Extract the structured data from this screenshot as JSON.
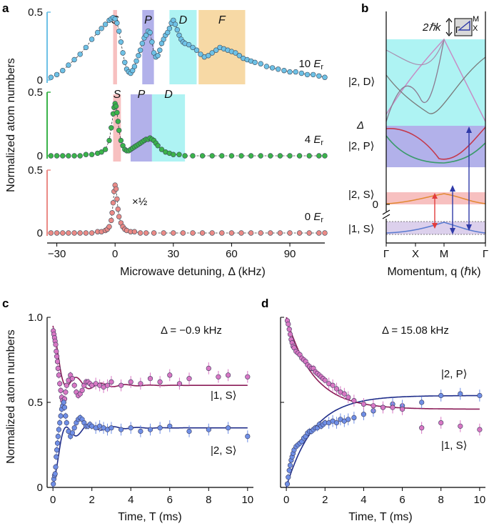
{
  "panels": {
    "a": "a",
    "b": "b",
    "c": "c",
    "d": "d"
  },
  "colors": {
    "blue": "#6ec1e6",
    "green": "#3bb34a",
    "red": "#ea8a86",
    "magenta": "#d877c4",
    "cyan_band": "#aef3f3",
    "violet_band": "#b2b1ea",
    "orange_band": "#f7d9a5",
    "pink_band": "#f7c0c0",
    "curve_magenta": "#8b1c58",
    "curve_blue": "#1f2d8a",
    "arrow_blue": "#2f3aa8",
    "arrow_red": "#e23c3c"
  },
  "chart_data": [
    {
      "id": "a",
      "type": "scatter",
      "xlabel": "Microwave detuning, Δ (kHz)",
      "ylabel": "Normalized atom numbers",
      "xlim": [
        -35,
        108
      ],
      "xticks": [
        "−30",
        "0",
        "30",
        "60",
        "90"
      ],
      "xtick_values": [
        -30,
        0,
        30,
        60,
        90
      ],
      "annotation": "×½",
      "series": [
        {
          "name": "10 E_r",
          "label": "10",
          "label_unit": "E",
          "label_sub": "r",
          "color": "#6ec1e6",
          "yticks": [
            "0",
            "0.5"
          ],
          "ylim": [
            0,
            0.5
          ],
          "bands": [
            {
              "label": "S",
              "from": -1,
              "to": 1,
              "color": "#f7c0c0"
            },
            {
              "label": "P",
              "from": 14,
              "to": 20,
              "color": "#b2b1ea"
            },
            {
              "label": "D",
              "from": 28,
              "to": 42,
              "color": "#aef3f3"
            },
            {
              "label": "F",
              "from": 43,
              "to": 67,
              "color": "#f7d9a5"
            }
          ],
          "x": [
            -33,
            -30,
            -27,
            -24,
            -21,
            -18,
            -15,
            -12,
            -9,
            -7,
            -5,
            -3,
            -2,
            -1,
            0,
            1,
            2,
            3,
            4,
            5,
            6,
            7,
            8,
            9,
            10,
            11,
            12,
            13,
            14,
            15,
            16,
            17,
            18,
            19,
            20,
            21,
            22,
            23,
            24,
            25,
            26,
            27,
            28,
            29,
            30,
            31,
            32,
            33,
            34,
            35,
            36,
            38,
            40,
            42,
            44,
            46,
            48,
            50,
            52,
            54,
            56,
            58,
            60,
            62,
            64,
            66,
            68,
            70,
            72,
            75,
            78,
            81,
            84,
            87,
            90,
            93,
            96,
            99,
            102,
            105,
            108
          ],
          "y": [
            0.02,
            0.04,
            0.07,
            0.11,
            0.15,
            0.19,
            0.24,
            0.3,
            0.35,
            0.38,
            0.41,
            0.44,
            0.45,
            0.46,
            0.45,
            0.42,
            0.36,
            0.28,
            0.2,
            0.13,
            0.08,
            0.06,
            0.05,
            0.07,
            0.1,
            0.14,
            0.18,
            0.22,
            0.27,
            0.31,
            0.33,
            0.36,
            0.35,
            0.28,
            0.2,
            0.17,
            0.18,
            0.22,
            0.27,
            0.3,
            0.33,
            0.35,
            0.38,
            0.42,
            0.44,
            0.41,
            0.37,
            0.33,
            0.3,
            0.28,
            0.27,
            0.26,
            0.24,
            0.22,
            0.19,
            0.17,
            0.18,
            0.2,
            0.22,
            0.24,
            0.23,
            0.22,
            0.21,
            0.2,
            0.18,
            0.16,
            0.15,
            0.14,
            0.13,
            0.12,
            0.1,
            0.09,
            0.08,
            0.07,
            0.06,
            0.06,
            0.05,
            0.04,
            0.04,
            0.03,
            0.02
          ]
        },
        {
          "name": "4 E_r",
          "label": "4",
          "label_unit": "E",
          "label_sub": "r",
          "color": "#3bb34a",
          "yticks": [
            "0",
            "0.5"
          ],
          "ylim": [
            0,
            0.5
          ],
          "bands": [
            {
              "label": "S",
              "from": -1,
              "to": 3,
              "color": "#f7c0c0"
            },
            {
              "label": "P",
              "from": 8,
              "to": 19,
              "color": "#b2b1ea"
            },
            {
              "label": "D",
              "from": 19,
              "to": 36,
              "color": "#aef3f3"
            }
          ],
          "x": [
            -33,
            -30,
            -27,
            -24,
            -21,
            -18,
            -15,
            -12,
            -9,
            -7,
            -5,
            -3,
            -2,
            -1,
            -0.5,
            0,
            0.5,
            1,
            1.5,
            2,
            3,
            4,
            5,
            6,
            7,
            8,
            9,
            10,
            11,
            12,
            13,
            14,
            15,
            16,
            17,
            18,
            19,
            20,
            21,
            22,
            24,
            26,
            28,
            30,
            33,
            36,
            40,
            45,
            50,
            55,
            60,
            65,
            70,
            75,
            80,
            85,
            90,
            95,
            100,
            105,
            108
          ],
          "y": [
            0,
            0,
            0,
            0,
            0,
            0,
            0.01,
            0.01,
            0.02,
            0.03,
            0.05,
            0.12,
            0.22,
            0.33,
            0.38,
            0.41,
            0.39,
            0.34,
            0.27,
            0.2,
            0.12,
            0.08,
            0.05,
            0.04,
            0.04,
            0.05,
            0.06,
            0.07,
            0.08,
            0.09,
            0.1,
            0.11,
            0.12,
            0.13,
            0.13,
            0.14,
            0.13,
            0.12,
            0.1,
            0.08,
            0.05,
            0.03,
            0.02,
            0.01,
            0.01,
            0,
            0,
            0,
            0,
            0,
            0,
            0,
            0,
            0,
            0,
            0,
            0,
            0,
            0,
            0,
            0
          ]
        },
        {
          "name": "0 E_r",
          "label": "0",
          "label_unit": "E",
          "label_sub": "r",
          "color": "#ea8a86",
          "yticks": [
            "0",
            "0.5"
          ],
          "ylim": [
            0,
            0.5
          ],
          "bands": [],
          "x": [
            -33,
            -30,
            -27,
            -24,
            -21,
            -18,
            -15,
            -12,
            -9,
            -7,
            -5,
            -4,
            -3,
            -2,
            -1.5,
            -1,
            -0.5,
            0,
            0.5,
            1,
            1.5,
            2,
            3,
            4,
            5,
            6,
            8,
            10,
            13,
            16,
            20,
            25,
            30,
            35,
            40,
            45,
            50,
            55,
            60,
            65,
            70,
            75,
            80,
            85,
            90,
            95,
            100,
            105,
            108
          ],
          "y": [
            0,
            0,
            0,
            0,
            0,
            0,
            0,
            0,
            0.01,
            0.01,
            0.02,
            0.03,
            0.05,
            0.1,
            0.16,
            0.24,
            0.33,
            0.38,
            0.35,
            0.27,
            0.19,
            0.13,
            0.08,
            0.05,
            0.03,
            0.02,
            0.01,
            0.01,
            0,
            0,
            0,
            0,
            0,
            0,
            0,
            0,
            0,
            0,
            0,
            0,
            0,
            0,
            0,
            0,
            0,
            0,
            0,
            0,
            0
          ]
        }
      ]
    },
    {
      "id": "b",
      "type": "line",
      "xlabel": "Momentum, q (ℏk)",
      "ylabel": "Δ",
      "xticks": [
        "Γ",
        "X",
        "M",
        "Γ"
      ],
      "inset_label": "2ℏk",
      "inset_points": [
        "Γ",
        "M",
        "X"
      ],
      "zero_label": "0",
      "band_labels": [
        "|2, D⟩",
        "|2, P⟩",
        "|2, S⟩",
        "|1, S⟩"
      ],
      "bands": [
        {
          "label": "|2, D⟩",
          "color": "#aef3f3"
        },
        {
          "label": "|2, P⟩",
          "color": "#b2b1ea"
        },
        {
          "label": "|2, S⟩",
          "color": "#f7c0c0"
        },
        {
          "label": "|1, S⟩",
          "color": "#dcd0ec"
        }
      ]
    },
    {
      "id": "c",
      "type": "scatter",
      "title": "Δ = −0.9 kHz",
      "xlabel": "Time, T (ms)",
      "ylabel": "Normalized atom numbers",
      "xlim": [
        -0.3,
        10.3
      ],
      "ylim": [
        0,
        1.0
      ],
      "xticks": [
        "0",
        "2",
        "4",
        "6",
        "8",
        "10"
      ],
      "xtick_values": [
        0,
        2,
        4,
        6,
        8,
        10
      ],
      "yticks": [
        "0",
        "0.5",
        "1.0"
      ],
      "ytick_values": [
        0,
        0.5,
        1.0
      ],
      "series": [
        {
          "name": "|1, S⟩",
          "color": "#d877c4",
          "x": [
            0.02,
            0.05,
            0.08,
            0.11,
            0.14,
            0.17,
            0.2,
            0.23,
            0.26,
            0.3,
            0.35,
            0.4,
            0.45,
            0.5,
            0.55,
            0.6,
            0.65,
            0.7,
            0.8,
            0.9,
            1.0,
            1.1,
            1.2,
            1.3,
            1.4,
            1.5,
            1.6,
            1.7,
            1.8,
            1.9,
            2.0,
            2.2,
            2.4,
            2.6,
            2.8,
            3.0,
            3.5,
            4.0,
            4.5,
            5.0,
            5.5,
            6.0,
            6.5,
            7.0,
            8.0,
            8.5,
            9.0,
            10.0
          ],
          "y": [
            0.92,
            0.9,
            0.88,
            0.86,
            0.84,
            0.8,
            0.77,
            0.74,
            0.7,
            0.66,
            0.61,
            0.57,
            0.53,
            0.51,
            0.5,
            0.52,
            0.56,
            0.6,
            0.63,
            0.66,
            0.64,
            0.6,
            0.56,
            0.54,
            0.55,
            0.57,
            0.6,
            0.62,
            0.62,
            0.61,
            0.6,
            0.61,
            0.6,
            0.59,
            0.6,
            0.62,
            0.6,
            0.62,
            0.61,
            0.64,
            0.62,
            0.66,
            0.61,
            0.64,
            0.7,
            0.65,
            0.66,
            0.65
          ]
        },
        {
          "name": "|2, S⟩",
          "color": "#6f8fe6",
          "x": [
            0.02,
            0.05,
            0.08,
            0.11,
            0.14,
            0.17,
            0.2,
            0.23,
            0.26,
            0.3,
            0.35,
            0.4,
            0.45,
            0.5,
            0.55,
            0.6,
            0.65,
            0.7,
            0.8,
            0.9,
            1.0,
            1.1,
            1.2,
            1.3,
            1.4,
            1.5,
            1.6,
            1.7,
            1.8,
            1.9,
            2.0,
            2.2,
            2.4,
            2.6,
            2.8,
            3.0,
            3.5,
            4.0,
            4.5,
            5.0,
            5.5,
            6.0,
            7.0,
            8.0,
            9.0,
            10.0
          ],
          "y": [
            0.02,
            0.05,
            0.07,
            0.08,
            0.12,
            0.18,
            0.22,
            0.26,
            0.3,
            0.34,
            0.38,
            0.42,
            0.46,
            0.48,
            0.5,
            0.47,
            0.42,
            0.38,
            0.33,
            0.3,
            0.32,
            0.35,
            0.38,
            0.4,
            0.41,
            0.4,
            0.38,
            0.36,
            0.36,
            0.37,
            0.36,
            0.35,
            0.36,
            0.35,
            0.34,
            0.35,
            0.34,
            0.35,
            0.33,
            0.34,
            0.35,
            0.36,
            0.33,
            0.34,
            0.35,
            0.3
          ]
        }
      ],
      "fits": [
        {
          "name": "fit |1, S⟩",
          "color": "#8b1c58",
          "kind": "decay_osc",
          "start": 0.95,
          "end": 0.6,
          "sign": 1
        },
        {
          "name": "fit |2, S⟩",
          "color": "#1f2d8a",
          "kind": "decay_osc",
          "start": 0.0,
          "end": 0.35,
          "sign": -1
        }
      ]
    },
    {
      "id": "d",
      "type": "scatter",
      "title": "Δ = 15.08 kHz",
      "xlabel": "Time, T (ms)",
      "xlim": [
        -0.3,
        10.3
      ],
      "ylim": [
        0,
        1.0
      ],
      "xticks": [
        "0",
        "2",
        "4",
        "6",
        "8",
        "10"
      ],
      "xtick_values": [
        0,
        2,
        4,
        6,
        8,
        10
      ],
      "series": [
        {
          "name": "|2, P⟩",
          "color": "#6f8fe6",
          "x": [
            0.05,
            0.1,
            0.15,
            0.2,
            0.25,
            0.3,
            0.35,
            0.4,
            0.5,
            0.6,
            0.7,
            0.8,
            0.9,
            1.0,
            1.1,
            1.2,
            1.3,
            1.4,
            1.5,
            1.6,
            1.7,
            1.8,
            1.9,
            2.0,
            2.2,
            2.4,
            2.6,
            2.8,
            3.0,
            3.2,
            3.5,
            4.0,
            4.5,
            5.0,
            5.5,
            6.0,
            7.0,
            8.0,
            9.0,
            10.0
          ],
          "y": [
            0.02,
            0.06,
            0.1,
            0.13,
            0.16,
            0.18,
            0.2,
            0.22,
            0.24,
            0.25,
            0.26,
            0.27,
            0.29,
            0.3,
            0.32,
            0.33,
            0.33,
            0.34,
            0.35,
            0.35,
            0.37,
            0.36,
            0.37,
            0.38,
            0.38,
            0.39,
            0.38,
            0.4,
            0.39,
            0.4,
            0.41,
            0.43,
            0.45,
            0.47,
            0.49,
            0.48,
            0.5,
            0.54,
            0.55,
            0.54
          ]
        },
        {
          "name": "|1, S⟩",
          "color": "#d877c4",
          "x": [
            0.05,
            0.1,
            0.15,
            0.2,
            0.25,
            0.3,
            0.35,
            0.4,
            0.5,
            0.6,
            0.7,
            0.8,
            0.9,
            1.0,
            1.1,
            1.2,
            1.3,
            1.4,
            1.5,
            1.6,
            1.7,
            1.8,
            1.9,
            2.0,
            2.2,
            2.4,
            2.6,
            2.8,
            3.0,
            3.2,
            3.5,
            4.0,
            4.5,
            5.0,
            5.5,
            6.0,
            7.0,
            8.0,
            9.0,
            10.0
          ],
          "y": [
            0.98,
            0.96,
            0.93,
            0.9,
            0.87,
            0.85,
            0.83,
            0.82,
            0.8,
            0.79,
            0.78,
            0.76,
            0.75,
            0.74,
            0.72,
            0.71,
            0.7,
            0.7,
            0.68,
            0.67,
            0.66,
            0.65,
            0.64,
            0.63,
            0.61,
            0.6,
            0.58,
            0.56,
            0.55,
            0.53,
            0.51,
            0.49,
            0.48,
            0.47,
            0.47,
            0.46,
            0.35,
            0.38,
            0.36,
            0.34
          ]
        }
      ],
      "fits": [
        {
          "name": "fit |2, P⟩",
          "color": "#1f2d8a",
          "kind": "exp",
          "start": 0.0,
          "end": 0.54
        },
        {
          "name": "fit |1, S⟩",
          "color": "#8b1c58",
          "kind": "exp",
          "start": 1.0,
          "end": 0.46
        }
      ]
    }
  ]
}
